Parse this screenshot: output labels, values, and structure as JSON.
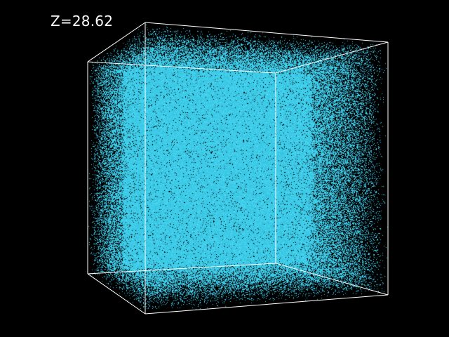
{
  "overlay": {
    "redshift_label": "Z=28.62"
  },
  "colors": {
    "background": "#000000",
    "particles": "#35c3e0",
    "particles_light": "#46d4f0",
    "wireframe": "#ffffff",
    "label": "#ffffff"
  }
}
